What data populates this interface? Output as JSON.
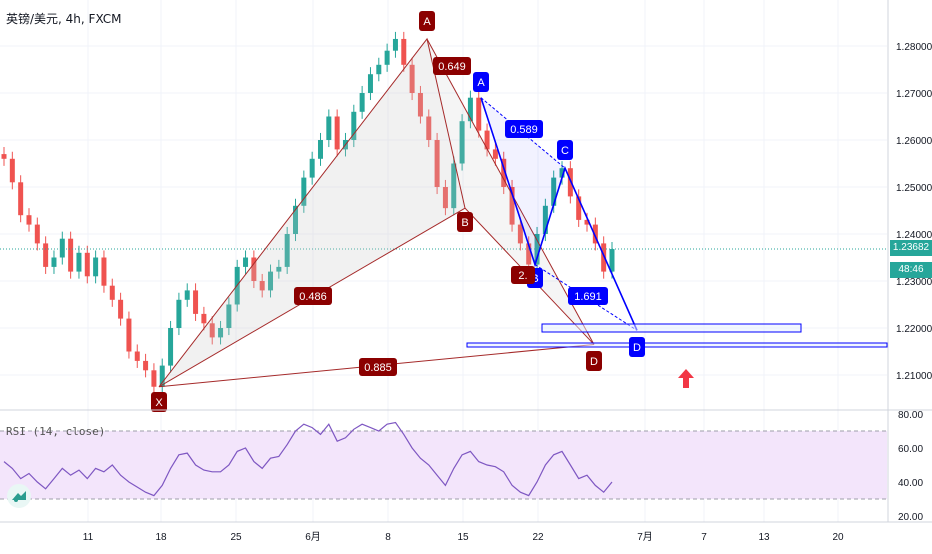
{
  "header": {
    "symbol": "英镑/美元, 4h, FXCM"
  },
  "price_tags": {
    "last_price": "1.23682",
    "countdown": "48:46"
  },
  "rsi": {
    "label": "RSI (14, close)"
  },
  "colors": {
    "up": "#26a69a",
    "down": "#ef5350",
    "maroon": "#8b0000",
    "blue": "#0000ff",
    "rsi_line": "#7e57c2",
    "rsi_band": "#f3e5fb"
  },
  "chart_data": [
    {
      "type": "candlestick",
      "title": "英镑/美元, 4h, FXCM",
      "x_ticks": [
        "11",
        "18",
        "25",
        "6月",
        "8",
        "15",
        "22",
        "7月",
        "7",
        "13",
        "20"
      ],
      "y_ticks": [
        "1.28000",
        "1.27000",
        "1.26000",
        "1.25000",
        "1.24000",
        "1.23000",
        "1.22000",
        "1.21000"
      ],
      "ylim": [
        1.2025,
        1.289
      ],
      "last_price": 1.23682,
      "harmonic_pattern": {
        "points": [
          {
            "label": "X",
            "price": 1.2075
          },
          {
            "label": "A",
            "price": 1.2815
          },
          {
            "label": "B",
            "price": 1.2455
          },
          {
            "label": "D",
            "price": 1.2165
          }
        ],
        "ratios": [
          "0.486",
          "0.649",
          "0.885"
        ]
      },
      "abcd_pattern": {
        "points": [
          {
            "label": "A",
            "price": 1.269
          },
          {
            "label": "B",
            "price": 1.2335
          },
          {
            "label": "C",
            "price": 1.254
          },
          {
            "label": "D",
            "price": 1.2195
          }
        ],
        "ratios": [
          "0.589",
          "1.691",
          "2."
        ]
      },
      "close_trace": [
        1.256,
        1.251,
        1.244,
        1.242,
        1.238,
        1.233,
        1.235,
        1.239,
        1.232,
        1.236,
        1.231,
        1.235,
        1.229,
        1.226,
        1.222,
        1.215,
        1.213,
        1.211,
        1.2075,
        1.212,
        1.22,
        1.226,
        1.228,
        1.223,
        1.221,
        1.218,
        1.22,
        1.225,
        1.233,
        1.235,
        1.23,
        1.228,
        1.232,
        1.233,
        1.24,
        1.246,
        1.252,
        1.256,
        1.26,
        1.265,
        1.258,
        1.26,
        1.266,
        1.27,
        1.274,
        1.276,
        1.279,
        1.2815,
        1.276,
        1.27,
        1.265,
        1.26,
        1.25,
        1.2455,
        1.255,
        1.264,
        1.269,
        1.262,
        1.258,
        1.256,
        1.25,
        1.242,
        1.238,
        1.2335,
        1.24,
        1.246,
        1.252,
        1.254,
        1.248,
        1.243,
        1.242,
        1.238,
        1.232,
        1.2368
      ]
    },
    {
      "type": "line",
      "name": "RSI (14, close)",
      "y_ticks": [
        "80.00",
        "60.00",
        "40.00",
        "20.00"
      ],
      "ylim": [
        20,
        80
      ],
      "levels": [
        70,
        30
      ],
      "values": [
        52,
        48,
        42,
        45,
        40,
        36,
        42,
        48,
        44,
        47,
        42,
        48,
        46,
        50,
        44,
        40,
        37,
        34,
        32,
        38,
        48,
        56,
        57,
        50,
        47,
        46,
        46,
        50,
        58,
        60,
        52,
        48,
        54,
        55,
        62,
        70,
        74,
        72,
        68,
        74,
        64,
        66,
        71,
        74,
        72,
        70,
        74,
        75,
        68,
        60,
        54,
        50,
        44,
        38,
        48,
        56,
        58,
        52,
        50,
        49,
        46,
        38,
        34,
        32,
        40,
        50,
        56,
        58,
        50,
        42,
        44,
        38,
        34,
        40
      ]
    }
  ]
}
